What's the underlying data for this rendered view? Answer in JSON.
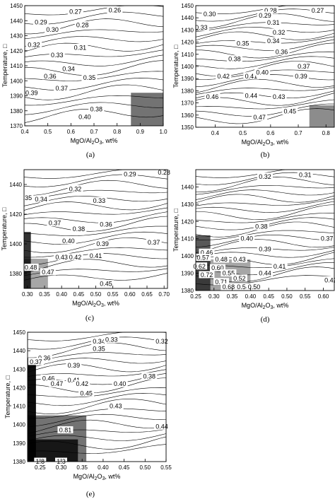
{
  "figure": {
    "panel_labels": [
      "(a)",
      "(b)",
      "(c)",
      "(d)",
      "(e)"
    ],
    "y_axis_label": "Temperature, □",
    "x_axis_label_main": "MgO/Al",
    "x_axis_label_sub1": "2",
    "x_axis_label_mid": "O",
    "x_axis_label_sub2": "3",
    "x_axis_label_end": ", wt%"
  },
  "chart_data": [
    {
      "type": "contour",
      "panel": "(a)",
      "xlabel": "MgO/Al2O3, wt%",
      "ylabel": "Temperature, □",
      "xlim": [
        0.4,
        1.0
      ],
      "ylim": [
        1370,
        1450
      ],
      "xticks": [
        "0.4",
        "0.5",
        "0.6",
        "0.7",
        "0.8",
        "0.9",
        "1.0"
      ],
      "yticks": [
        "1370",
        "1380",
        "1390",
        "1400",
        "1410",
        "1420",
        "1430",
        "1440",
        "1450"
      ],
      "contour_labels": [
        {
          "text": "0.27",
          "x": 0.62,
          "y": 1446
        },
        {
          "text": "0.26",
          "x": 0.79,
          "y": 1447
        },
        {
          "text": "0.29",
          "x": 0.47,
          "y": 1439
        },
        {
          "text": "0.28",
          "x": 0.65,
          "y": 1437
        },
        {
          "text": "0.30",
          "x": 0.52,
          "y": 1434
        },
        {
          "text": "0.32",
          "x": 0.44,
          "y": 1424
        },
        {
          "text": "0.31",
          "x": 0.64,
          "y": 1422
        },
        {
          "text": "0.33",
          "x": 0.54,
          "y": 1417
        },
        {
          "text": "0.34",
          "x": 0.59,
          "y": 1408
        },
        {
          "text": "0.36",
          "x": 0.51,
          "y": 1403
        },
        {
          "text": "0.35",
          "x": 0.68,
          "y": 1402
        },
        {
          "text": "0.37",
          "x": 0.56,
          "y": 1395
        },
        {
          "text": "0.39",
          "x": 0.43,
          "y": 1392
        },
        {
          "text": "0.38",
          "x": 0.71,
          "y": 1381
        },
        {
          "text": "0.40",
          "x": 0.66,
          "y": 1376
        }
      ],
      "contour_values": [
        0.26,
        0.27,
        0.28,
        0.29,
        0.3,
        0.31,
        0.32,
        0.33,
        0.34,
        0.35,
        0.36,
        0.37,
        0.38,
        0.39,
        0.4
      ]
    },
    {
      "type": "contour",
      "panel": "(b)",
      "xlabel": "MgO/Al2O3, wt%",
      "ylabel": "Temperature, □",
      "xlim": [
        0.33,
        0.83
      ],
      "ylim": [
        1350,
        1450
      ],
      "xticks": [
        "0.4",
        "0.5",
        "0.6",
        "0.7",
        "0.8"
      ],
      "yticks": [
        "1350",
        "1360",
        "1370",
        "1380",
        "1390",
        "1400",
        "1410",
        "1420",
        "1430",
        "1440",
        "1450"
      ],
      "contour_labels": [
        {
          "text": "0.28",
          "x": 0.6,
          "y": 1446
        },
        {
          "text": "0.27",
          "x": 0.77,
          "y": 1446
        },
        {
          "text": "0.30",
          "x": 0.38,
          "y": 1443
        },
        {
          "text": "0.29",
          "x": 0.58,
          "y": 1442
        },
        {
          "text": "0.31",
          "x": 0.61,
          "y": 1436
        },
        {
          "text": "0.33",
          "x": 0.35,
          "y": 1432
        },
        {
          "text": "0.32",
          "x": 0.63,
          "y": 1428
        },
        {
          "text": "0.35",
          "x": 0.5,
          "y": 1419
        },
        {
          "text": "0.34",
          "x": 0.61,
          "y": 1421
        },
        {
          "text": "0.36",
          "x": 0.64,
          "y": 1412
        },
        {
          "text": "0.38",
          "x": 0.47,
          "y": 1406
        },
        {
          "text": "0.37",
          "x": 0.72,
          "y": 1400
        },
        {
          "text": "0.42",
          "x": 0.43,
          "y": 1392
        },
        {
          "text": "0.41",
          "x": 0.53,
          "y": 1392
        },
        {
          "text": "0.40",
          "x": 0.57,
          "y": 1395
        },
        {
          "text": "0.39",
          "x": 0.71,
          "y": 1392
        },
        {
          "text": "0.46",
          "x": 0.39,
          "y": 1375
        },
        {
          "text": "0.44",
          "x": 0.53,
          "y": 1376
        },
        {
          "text": "0.43",
          "x": 0.63,
          "y": 1375
        },
        {
          "text": "0.45",
          "x": 0.67,
          "y": 1363
        },
        {
          "text": "0.47",
          "x": 0.56,
          "y": 1358
        }
      ],
      "contour_values": [
        0.27,
        0.28,
        0.29,
        0.3,
        0.31,
        0.32,
        0.33,
        0.34,
        0.35,
        0.36,
        0.37,
        0.38,
        0.39,
        0.4,
        0.41,
        0.42,
        0.43,
        0.44,
        0.45,
        0.46,
        0.47
      ]
    },
    {
      "type": "contour",
      "panel": "(c)",
      "xlabel": "MgO/Al2O3, wt%",
      "ylabel": "Temperature, □",
      "xlim": [
        0.29,
        0.71
      ],
      "ylim": [
        1370,
        1450
      ],
      "xticks": [
        "0.30",
        "0.35",
        "0.40",
        "0.45",
        "0.50",
        "0.55",
        "0.60",
        "0.65",
        "0.70"
      ],
      "yticks": [
        "1380",
        "1400",
        "1420",
        "1440"
      ],
      "contour_labels": [
        {
          "text": "0.29",
          "x": 0.6,
          "y": 1447
        },
        {
          "text": "0.28",
          "x": 0.7,
          "y": 1448
        },
        {
          "text": "0.32",
          "x": 0.44,
          "y": 1437
        },
        {
          "text": ".35",
          "x": 0.3,
          "y": 1431
        },
        {
          "text": "0.34",
          "x": 0.34,
          "y": 1430
        },
        {
          "text": "0.33",
          "x": 0.51,
          "y": 1429
        },
        {
          "text": "0.37",
          "x": 0.38,
          "y": 1414
        },
        {
          "text": "0.36",
          "x": 0.53,
          "y": 1413
        },
        {
          "text": "0.38",
          "x": 0.45,
          "y": 1410
        },
        {
          "text": "0.40",
          "x": 0.42,
          "y": 1402
        },
        {
          "text": "0.39",
          "x": 0.52,
          "y": 1400
        },
        {
          "text": "0.37",
          "x": 0.67,
          "y": 1401
        },
        {
          "text": "0.43",
          "x": 0.4,
          "y": 1391
        },
        {
          "text": "0.42",
          "x": 0.44,
          "y": 1391
        },
        {
          "text": "0.41",
          "x": 0.5,
          "y": 1392
        },
        {
          "text": "0.48",
          "x": 0.31,
          "y": 1384
        },
        {
          "text": "0.47",
          "x": 0.36,
          "y": 1381
        },
        {
          "text": "0.45",
          "x": 0.53,
          "y": 1373
        }
      ],
      "contour_values": [
        0.28,
        0.29,
        0.32,
        0.33,
        0.34,
        0.35,
        0.36,
        0.37,
        0.38,
        0.39,
        0.4,
        0.41,
        0.42,
        0.43,
        0.45,
        0.47,
        0.48
      ]
    },
    {
      "type": "contour",
      "panel": "(d)",
      "xlabel": "MgO/Al2O3, wt%",
      "ylabel": "Temperature, □",
      "xlim": [
        0.25,
        0.63
      ],
      "ylim": [
        1380,
        1450
      ],
      "xticks": [
        "0.25",
        "0.30",
        "0.35",
        "0.40",
        "0.45",
        "0.50",
        "0.55",
        "0.60"
      ],
      "yticks": [
        "1380",
        "1390",
        "1400",
        "1410",
        "1420",
        "1430",
        "1440"
      ],
      "contour_labels": [
        {
          "text": "0.32",
          "x": 0.44,
          "y": 1446
        },
        {
          "text": "0.31",
          "x": 0.55,
          "y": 1447
        },
        {
          "text": "0.38",
          "x": 0.43,
          "y": 1417
        },
        {
          "text": "0.40",
          "x": 0.39,
          "y": 1410
        },
        {
          "text": "0.37",
          "x": 0.61,
          "y": 1410
        },
        {
          "text": "0.39",
          "x": 0.44,
          "y": 1404
        },
        {
          "text": "0.46",
          "x": 0.28,
          "y": 1402
        },
        {
          "text": "0.57",
          "x": 0.27,
          "y": 1399
        },
        {
          "text": "0.48",
          "x": 0.32,
          "y": 1398
        },
        {
          "text": "0.43",
          "x": 0.37,
          "y": 1398
        },
        {
          "text": "0.62",
          "x": 0.26,
          "y": 1394
        },
        {
          "text": "0.60",
          "x": 0.31,
          "y": 1393
        },
        {
          "text": "0.41",
          "x": 0.48,
          "y": 1394
        },
        {
          "text": "0.72",
          "x": 0.28,
          "y": 1389
        },
        {
          "text": "0.55",
          "x": 0.34,
          "y": 1390
        },
        {
          "text": "0.52",
          "x": 0.37,
          "y": 1387
        },
        {
          "text": "0.44",
          "x": 0.44,
          "y": 1390
        },
        {
          "text": "0.71",
          "x": 0.32,
          "y": 1385
        },
        {
          "text": "0.42",
          "x": 0.62,
          "y": 1386
        },
        {
          "text": "0.68",
          "x": 0.34,
          "y": 1382
        },
        {
          "text": "0.54",
          "x": 0.38,
          "y": 1382
        },
        {
          "text": "0.50",
          "x": 0.41,
          "y": 1382
        }
      ],
      "contour_values": [
        0.31,
        0.32,
        0.37,
        0.38,
        0.39,
        0.4,
        0.41,
        0.42,
        0.43,
        0.44,
        0.46,
        0.48,
        0.5,
        0.52,
        0.54,
        0.55,
        0.57,
        0.6,
        0.62,
        0.68,
        0.71,
        0.72
      ]
    },
    {
      "type": "contour",
      "panel": "(e)",
      "xlabel": "MgO/Al2O3, wt%",
      "ylabel": "Temperature, □",
      "xlim": [
        0.22,
        0.55
      ],
      "ylim": [
        1380,
        1450
      ],
      "xticks": [
        "0.25",
        "0.30",
        "0.35",
        "0.40",
        "0.45",
        "0.50",
        "0.55"
      ],
      "yticks": [
        "1380",
        "1390",
        "1400",
        "1410",
        "1420",
        "1430",
        "1440",
        "1450"
      ],
      "contour_labels": [
        {
          "text": "0.34",
          "x": 0.39,
          "y": 1445
        },
        {
          "text": "0.33",
          "x": 0.42,
          "y": 1446
        },
        {
          "text": "0.32",
          "x": 0.54,
          "y": 1445
        },
        {
          "text": "0.35",
          "x": 0.39,
          "y": 1441
        },
        {
          "text": "0.36",
          "x": 0.26,
          "y": 1436
        },
        {
          "text": "0.37",
          "x": 0.24,
          "y": 1434
        },
        {
          "text": "0.39",
          "x": 0.33,
          "y": 1432
        },
        {
          "text": "0.38",
          "x": 0.51,
          "y": 1426
        },
        {
          "text": "0.46",
          "x": 0.27,
          "y": 1425
        },
        {
          "text": "0.41",
          "x": 0.33,
          "y": 1424
        },
        {
          "text": "0.47",
          "x": 0.29,
          "y": 1422
        },
        {
          "text": "0.42",
          "x": 0.35,
          "y": 1422
        },
        {
          "text": "0.40",
          "x": 0.44,
          "y": 1422
        },
        {
          "text": "0.45",
          "x": 0.36,
          "y": 1417
        },
        {
          "text": "0.43",
          "x": 0.43,
          "y": 1410
        },
        {
          "text": "0.81",
          "x": 0.31,
          "y": 1397
        },
        {
          "text": "0.44",
          "x": 0.54,
          "y": 1399
        },
        {
          "text": "1.8",
          "x": 0.25,
          "y": 1380
        },
        {
          "text": "1.3",
          "x": 0.3,
          "y": 1380
        }
      ],
      "contour_values": [
        0.32,
        0.33,
        0.34,
        0.35,
        0.36,
        0.37,
        0.38,
        0.39,
        0.4,
        0.41,
        0.42,
        0.43,
        0.44,
        0.45,
        0.46,
        0.47,
        0.81,
        1.3,
        1.8
      ]
    }
  ]
}
